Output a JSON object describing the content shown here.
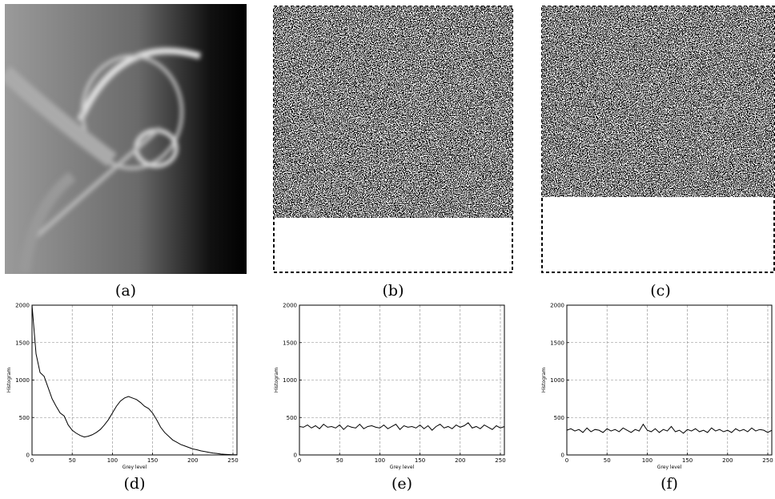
{
  "images": [
    {
      "caption": "(a)"
    },
    {
      "caption": "(b)"
    },
    {
      "caption": "(c)"
    }
  ],
  "chart_data": [
    {
      "type": "line",
      "caption": "(d)",
      "xlabel": "Grey level",
      "ylabel": "Histogram",
      "xlim": [
        0,
        255
      ],
      "ylim": [
        0,
        2000
      ],
      "xticks": [
        0,
        50,
        100,
        150,
        200,
        250
      ],
      "yticks": [
        0,
        500,
        1000,
        1500,
        2000
      ],
      "grid": true,
      "color": "#000000",
      "x": [
        0,
        5,
        10,
        15,
        20,
        25,
        30,
        35,
        40,
        45,
        50,
        55,
        60,
        65,
        70,
        75,
        80,
        85,
        90,
        95,
        100,
        105,
        110,
        115,
        120,
        125,
        130,
        135,
        140,
        145,
        150,
        155,
        160,
        165,
        170,
        175,
        180,
        185,
        190,
        195,
        200,
        205,
        210,
        215,
        220,
        225,
        230,
        235,
        240,
        245,
        250,
        255
      ],
      "values": [
        2000,
        1350,
        1100,
        1050,
        900,
        750,
        650,
        560,
        520,
        400,
        330,
        290,
        260,
        240,
        250,
        270,
        300,
        340,
        400,
        470,
        560,
        650,
        720,
        760,
        780,
        760,
        740,
        700,
        650,
        620,
        560,
        470,
        370,
        300,
        250,
        200,
        170,
        140,
        120,
        100,
        80,
        70,
        55,
        45,
        35,
        25,
        20,
        12,
        8,
        5,
        3,
        2
      ]
    },
    {
      "type": "line",
      "caption": "(e)",
      "xlabel": "Grey level",
      "ylabel": "Histogram",
      "xlim": [
        0,
        255
      ],
      "ylim": [
        0,
        2000
      ],
      "xticks": [
        0,
        50,
        100,
        150,
        200,
        250
      ],
      "yticks": [
        0,
        500,
        1000,
        1500,
        2000
      ],
      "grid": true,
      "color": "#000000",
      "x": [
        0,
        5,
        10,
        15,
        20,
        25,
        30,
        35,
        40,
        45,
        50,
        55,
        60,
        65,
        70,
        75,
        80,
        85,
        90,
        95,
        100,
        105,
        110,
        115,
        120,
        125,
        130,
        135,
        140,
        145,
        150,
        155,
        160,
        165,
        170,
        175,
        180,
        185,
        190,
        195,
        200,
        205,
        210,
        215,
        220,
        225,
        230,
        235,
        240,
        245,
        250,
        255
      ],
      "values": [
        380,
        370,
        400,
        360,
        390,
        350,
        410,
        370,
        380,
        360,
        400,
        340,
        390,
        370,
        360,
        410,
        350,
        380,
        390,
        370,
        360,
        400,
        350,
        380,
        410,
        340,
        390,
        370,
        380,
        360,
        400,
        350,
        390,
        330,
        380,
        410,
        360,
        380,
        350,
        400,
        370,
        390,
        430,
        360,
        380,
        350,
        400,
        370,
        340,
        390,
        360,
        380
      ]
    },
    {
      "type": "line",
      "caption": "(f)",
      "xlabel": "Grey level",
      "ylabel": "Histogram",
      "xlim": [
        0,
        255
      ],
      "ylim": [
        0,
        2000
      ],
      "xticks": [
        0,
        50,
        100,
        150,
        200,
        250
      ],
      "yticks": [
        0,
        500,
        1000,
        1500,
        2000
      ],
      "grid": true,
      "color": "#000000",
      "x": [
        0,
        5,
        10,
        15,
        20,
        25,
        30,
        35,
        40,
        45,
        50,
        55,
        60,
        65,
        70,
        75,
        80,
        85,
        90,
        95,
        100,
        105,
        110,
        115,
        120,
        125,
        130,
        135,
        140,
        145,
        150,
        155,
        160,
        165,
        170,
        175,
        180,
        185,
        190,
        195,
        200,
        205,
        210,
        215,
        220,
        225,
        230,
        235,
        240,
        245,
        250,
        255
      ],
      "values": [
        330,
        350,
        320,
        340,
        300,
        360,
        310,
        340,
        330,
        300,
        350,
        320,
        340,
        310,
        360,
        330,
        300,
        340,
        320,
        410,
        330,
        310,
        350,
        300,
        340,
        320,
        380,
        310,
        330,
        290,
        340,
        320,
        350,
        310,
        330,
        300,
        360,
        320,
        340,
        310,
        330,
        300,
        350,
        320,
        340,
        310,
        360,
        320,
        340,
        330,
        300,
        330
      ]
    }
  ]
}
